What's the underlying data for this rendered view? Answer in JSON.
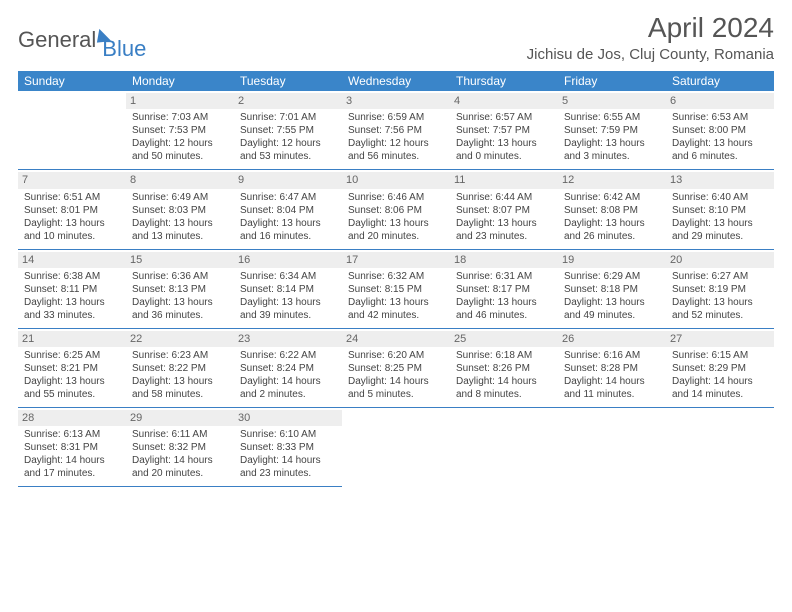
{
  "logo": {
    "part1": "General",
    "part2": "Blue"
  },
  "title": "April 2024",
  "location": "Jichisu de Jos, Cluj County, Romania",
  "colors": {
    "header_bg": "#3a85c9",
    "header_text": "#ffffff",
    "accent": "#3a7fc4",
    "daynum_bg": "#eeeeee",
    "text": "#444444"
  },
  "weekdays": [
    "Sunday",
    "Monday",
    "Tuesday",
    "Wednesday",
    "Thursday",
    "Friday",
    "Saturday"
  ],
  "weeks": [
    [
      null,
      {
        "n": "1",
        "sr": "Sunrise: 7:03 AM",
        "ss": "Sunset: 7:53 PM",
        "d1": "Daylight: 12 hours",
        "d2": "and 50 minutes."
      },
      {
        "n": "2",
        "sr": "Sunrise: 7:01 AM",
        "ss": "Sunset: 7:55 PM",
        "d1": "Daylight: 12 hours",
        "d2": "and 53 minutes."
      },
      {
        "n": "3",
        "sr": "Sunrise: 6:59 AM",
        "ss": "Sunset: 7:56 PM",
        "d1": "Daylight: 12 hours",
        "d2": "and 56 minutes."
      },
      {
        "n": "4",
        "sr": "Sunrise: 6:57 AM",
        "ss": "Sunset: 7:57 PM",
        "d1": "Daylight: 13 hours",
        "d2": "and 0 minutes."
      },
      {
        "n": "5",
        "sr": "Sunrise: 6:55 AM",
        "ss": "Sunset: 7:59 PM",
        "d1": "Daylight: 13 hours",
        "d2": "and 3 minutes."
      },
      {
        "n": "6",
        "sr": "Sunrise: 6:53 AM",
        "ss": "Sunset: 8:00 PM",
        "d1": "Daylight: 13 hours",
        "d2": "and 6 minutes."
      }
    ],
    [
      {
        "n": "7",
        "sr": "Sunrise: 6:51 AM",
        "ss": "Sunset: 8:01 PM",
        "d1": "Daylight: 13 hours",
        "d2": "and 10 minutes."
      },
      {
        "n": "8",
        "sr": "Sunrise: 6:49 AM",
        "ss": "Sunset: 8:03 PM",
        "d1": "Daylight: 13 hours",
        "d2": "and 13 minutes."
      },
      {
        "n": "9",
        "sr": "Sunrise: 6:47 AM",
        "ss": "Sunset: 8:04 PM",
        "d1": "Daylight: 13 hours",
        "d2": "and 16 minutes."
      },
      {
        "n": "10",
        "sr": "Sunrise: 6:46 AM",
        "ss": "Sunset: 8:06 PM",
        "d1": "Daylight: 13 hours",
        "d2": "and 20 minutes."
      },
      {
        "n": "11",
        "sr": "Sunrise: 6:44 AM",
        "ss": "Sunset: 8:07 PM",
        "d1": "Daylight: 13 hours",
        "d2": "and 23 minutes."
      },
      {
        "n": "12",
        "sr": "Sunrise: 6:42 AM",
        "ss": "Sunset: 8:08 PM",
        "d1": "Daylight: 13 hours",
        "d2": "and 26 minutes."
      },
      {
        "n": "13",
        "sr": "Sunrise: 6:40 AM",
        "ss": "Sunset: 8:10 PM",
        "d1": "Daylight: 13 hours",
        "d2": "and 29 minutes."
      }
    ],
    [
      {
        "n": "14",
        "sr": "Sunrise: 6:38 AM",
        "ss": "Sunset: 8:11 PM",
        "d1": "Daylight: 13 hours",
        "d2": "and 33 minutes."
      },
      {
        "n": "15",
        "sr": "Sunrise: 6:36 AM",
        "ss": "Sunset: 8:13 PM",
        "d1": "Daylight: 13 hours",
        "d2": "and 36 minutes."
      },
      {
        "n": "16",
        "sr": "Sunrise: 6:34 AM",
        "ss": "Sunset: 8:14 PM",
        "d1": "Daylight: 13 hours",
        "d2": "and 39 minutes."
      },
      {
        "n": "17",
        "sr": "Sunrise: 6:32 AM",
        "ss": "Sunset: 8:15 PM",
        "d1": "Daylight: 13 hours",
        "d2": "and 42 minutes."
      },
      {
        "n": "18",
        "sr": "Sunrise: 6:31 AM",
        "ss": "Sunset: 8:17 PM",
        "d1": "Daylight: 13 hours",
        "d2": "and 46 minutes."
      },
      {
        "n": "19",
        "sr": "Sunrise: 6:29 AM",
        "ss": "Sunset: 8:18 PM",
        "d1": "Daylight: 13 hours",
        "d2": "and 49 minutes."
      },
      {
        "n": "20",
        "sr": "Sunrise: 6:27 AM",
        "ss": "Sunset: 8:19 PM",
        "d1": "Daylight: 13 hours",
        "d2": "and 52 minutes."
      }
    ],
    [
      {
        "n": "21",
        "sr": "Sunrise: 6:25 AM",
        "ss": "Sunset: 8:21 PM",
        "d1": "Daylight: 13 hours",
        "d2": "and 55 minutes."
      },
      {
        "n": "22",
        "sr": "Sunrise: 6:23 AM",
        "ss": "Sunset: 8:22 PM",
        "d1": "Daylight: 13 hours",
        "d2": "and 58 minutes."
      },
      {
        "n": "23",
        "sr": "Sunrise: 6:22 AM",
        "ss": "Sunset: 8:24 PM",
        "d1": "Daylight: 14 hours",
        "d2": "and 2 minutes."
      },
      {
        "n": "24",
        "sr": "Sunrise: 6:20 AM",
        "ss": "Sunset: 8:25 PM",
        "d1": "Daylight: 14 hours",
        "d2": "and 5 minutes."
      },
      {
        "n": "25",
        "sr": "Sunrise: 6:18 AM",
        "ss": "Sunset: 8:26 PM",
        "d1": "Daylight: 14 hours",
        "d2": "and 8 minutes."
      },
      {
        "n": "26",
        "sr": "Sunrise: 6:16 AM",
        "ss": "Sunset: 8:28 PM",
        "d1": "Daylight: 14 hours",
        "d2": "and 11 minutes."
      },
      {
        "n": "27",
        "sr": "Sunrise: 6:15 AM",
        "ss": "Sunset: 8:29 PM",
        "d1": "Daylight: 14 hours",
        "d2": "and 14 minutes."
      }
    ],
    [
      {
        "n": "28",
        "sr": "Sunrise: 6:13 AM",
        "ss": "Sunset: 8:31 PM",
        "d1": "Daylight: 14 hours",
        "d2": "and 17 minutes."
      },
      {
        "n": "29",
        "sr": "Sunrise: 6:11 AM",
        "ss": "Sunset: 8:32 PM",
        "d1": "Daylight: 14 hours",
        "d2": "and 20 minutes."
      },
      {
        "n": "30",
        "sr": "Sunrise: 6:10 AM",
        "ss": "Sunset: 8:33 PM",
        "d1": "Daylight: 14 hours",
        "d2": "and 23 minutes."
      },
      null,
      null,
      null,
      null
    ]
  ]
}
